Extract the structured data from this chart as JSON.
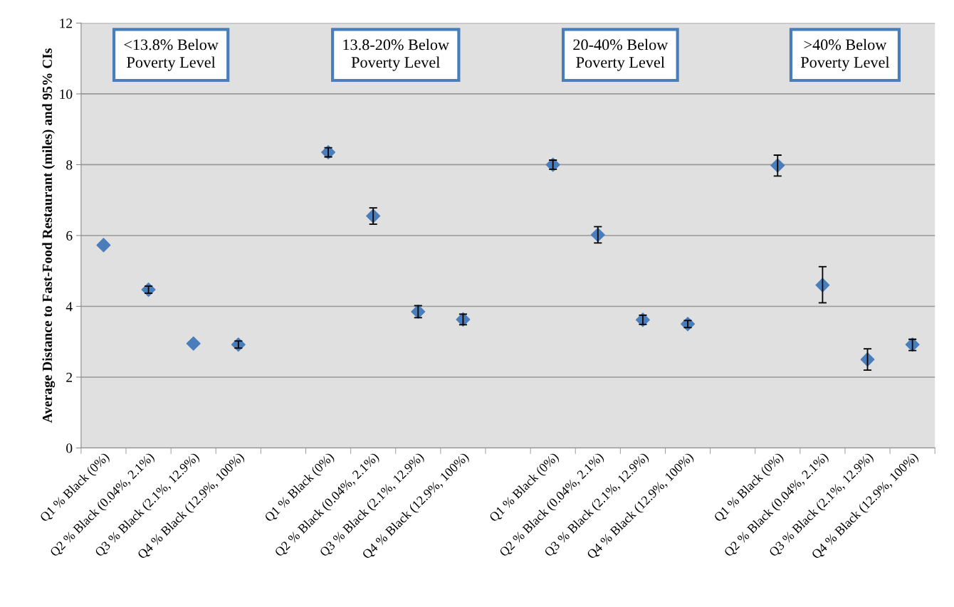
{
  "chart_data": {
    "type": "scatter",
    "ylabel": "Average Distance to Fast-Food Restaurant (miles) and 95% CIs",
    "categories": [
      "Q1 % Black (0%)",
      "Q2 % Black (0.04%, 2.1%)",
      "Q3 % Black (2.1%, 12.9%)",
      "Q4 % Black (12.9%, 100%)",
      null,
      "Q1 % Black (0%)",
      "Q2 % Black (0.04%, 2.1%)",
      "Q3 % Black (2.1%, 12.9%)",
      "Q4 % Black (12.9%, 100%)",
      null,
      "Q1 % Black (0%)",
      "Q2 % Black (0.04%, 2.1%)",
      "Q3 % Black (2.1%, 12.9%)",
      "Q4 % Black (12.9%, 100%)",
      null,
      "Q1 % Black (0%)",
      "Q2 % Black (0.04%, 2.1%)",
      "Q3 % Black (2.1%, 12.9%)",
      "Q4 % Black (12.9%, 100%)"
    ],
    "values": [
      5.73,
      4.47,
      2.95,
      2.92,
      null,
      8.35,
      6.55,
      3.85,
      3.63,
      null,
      8.0,
      6.02,
      3.62,
      3.5,
      null,
      7.98,
      4.6,
      2.5,
      2.92
    ],
    "errors": [
      null,
      0.1,
      null,
      0.1,
      null,
      0.13,
      0.23,
      0.17,
      0.15,
      null,
      0.13,
      0.23,
      0.13,
      0.1,
      null,
      [
        7.68,
        8.27
      ],
      [
        4.1,
        5.12
      ],
      [
        2.2,
        2.8
      ],
      [
        2.75,
        3.07
      ]
    ],
    "color": "#4a7ebb",
    "marker": "diamond",
    "ylim": [
      0,
      12
    ],
    "yticks": [
      0,
      2,
      4,
      6,
      8,
      10,
      12
    ],
    "grid": "y",
    "annotations": [
      "<13.8% Below\nPoverty Level",
      "13.8-20% Below\nPoverty Level",
      "20-40% Below\nPoverty Level",
      ">40% Below\nPoverty Level"
    ]
  }
}
